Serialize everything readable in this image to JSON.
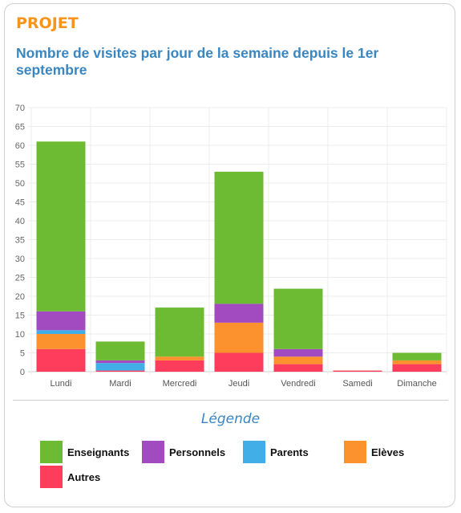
{
  "card": {
    "tag": "PROJET",
    "title": "Nombre de visites par jour de la semaine depuis le 1er septembre",
    "legend_title": "Légende"
  },
  "colors": {
    "Enseignants": "#6dbb33",
    "Personnels": "#a24bc1",
    "Parents": "#41aee8",
    "Elèves": "#fc922e",
    "Autres": "#fe3d5c"
  },
  "chart_data": {
    "type": "bar",
    "stacked": true,
    "categories": [
      "Lundi",
      "Mardi",
      "Mercredi",
      "Jeudi",
      "Vendredi",
      "Samedi",
      "Dimanche"
    ],
    "series": [
      {
        "name": "Autres",
        "values": [
          6,
          0.3,
          3,
          5,
          2,
          0.3,
          2
        ]
      },
      {
        "name": "Elèves",
        "values": [
          4,
          0,
          1,
          8,
          2,
          0,
          1
        ]
      },
      {
        "name": "Parents",
        "values": [
          1,
          2,
          0,
          0,
          0,
          0,
          0
        ]
      },
      {
        "name": "Personnels",
        "values": [
          5,
          0.7,
          0,
          5,
          2,
          0,
          0
        ]
      },
      {
        "name": "Enseignants",
        "values": [
          45,
          5,
          13,
          35,
          16,
          0,
          2
        ]
      }
    ],
    "ylim": [
      0,
      70
    ],
    "yticks": [
      0,
      5,
      10,
      15,
      20,
      25,
      30,
      35,
      40,
      45,
      50,
      55,
      60,
      65,
      70
    ],
    "grid": true,
    "legend_position": "bottom"
  },
  "legend": [
    {
      "label": "Enseignants",
      "color": "#6dbb33"
    },
    {
      "label": "Personnels",
      "color": "#a24bc1"
    },
    {
      "label": "Parents",
      "color": "#41aee8"
    },
    {
      "label": "Elèves",
      "color": "#fc922e"
    },
    {
      "label": "Autres",
      "color": "#fe3d5c"
    }
  ]
}
